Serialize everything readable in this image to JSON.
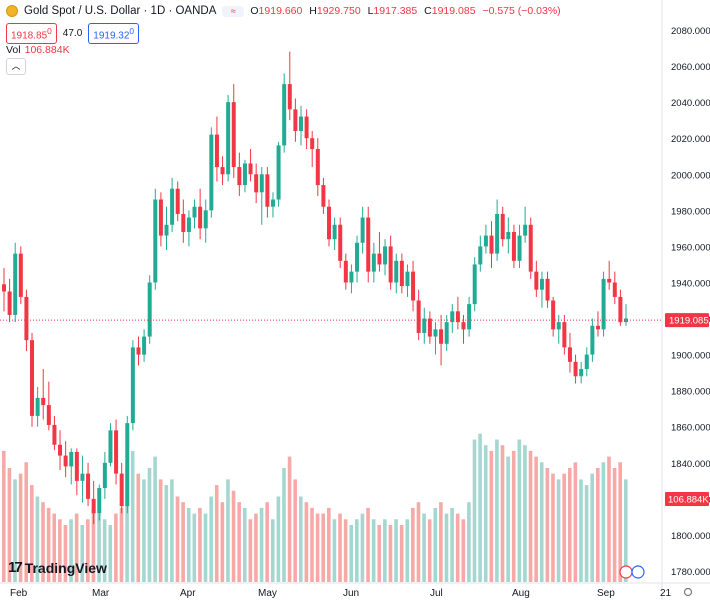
{
  "header": {
    "title": "Gold Spot / U.S. Dollar · 1D · OANDA",
    "ohlc": [
      {
        "k": "O",
        "v": "1919.660"
      },
      {
        "k": "H",
        "v": "1929.750"
      },
      {
        "k": "L",
        "v": "1917.385"
      },
      {
        "k": "C",
        "v": "1919.085"
      },
      {
        "k": "",
        "v": "−0.575 (−0.03%)"
      }
    ],
    "bid": "1918.85",
    "bid_sup": "0",
    "spread": "47.0",
    "ask": "1919.32",
    "ask_sup": "0",
    "vol_label": "Vol",
    "vol_value": "106.884K",
    "brand": "TradingView"
  },
  "colors": {
    "up": "#22ab94",
    "down": "#f23645",
    "vol_up": "#a5d6d0",
    "vol_down": "#f7a9a7"
  },
  "chart_data": {
    "type": "candlestick",
    "symbol": "Gold Spot / U.S. Dollar",
    "interval": "1D",
    "exchange": "OANDA",
    "last_price": "1919.085",
    "volume_last": "106.884K",
    "y_ticks": [
      "2080.000",
      "2060.000",
      "2040.000",
      "2020.000",
      "2000.000",
      "1980.000",
      "1960.000",
      "1940.000",
      "1920.000",
      "1900.000",
      "1880.000",
      "1860.000",
      "1840.000",
      "1820.000",
      "1800.000",
      "1780.000"
    ],
    "ylim": [
      1780,
      2080
    ],
    "x_ticks": [
      "Feb",
      "Mar",
      "Apr",
      "May",
      "Jun",
      "Jul",
      "Aug",
      "Sep",
      "21"
    ],
    "candles": [
      [
        1939,
        1948,
        1924,
        1935,
        46
      ],
      [
        1935,
        1942,
        1918,
        1922,
        40
      ],
      [
        1922,
        1962,
        1918,
        1956,
        36
      ],
      [
        1956,
        1960,
        1928,
        1932,
        38
      ],
      [
        1932,
        1936,
        1902,
        1908,
        42
      ],
      [
        1908,
        1912,
        1860,
        1866,
        34
      ],
      [
        1866,
        1882,
        1860,
        1876,
        30
      ],
      [
        1876,
        1892,
        1864,
        1872,
        28
      ],
      [
        1872,
        1885,
        1858,
        1861,
        26
      ],
      [
        1861,
        1866,
        1847,
        1850,
        24
      ],
      [
        1850,
        1858,
        1836,
        1844,
        22
      ],
      [
        1844,
        1852,
        1832,
        1838,
        20
      ],
      [
        1838,
        1848,
        1828,
        1846,
        22
      ],
      [
        1846,
        1848,
        1822,
        1830,
        24
      ],
      [
        1830,
        1844,
        1818,
        1834,
        20
      ],
      [
        1834,
        1840,
        1816,
        1820,
        22
      ],
      [
        1820,
        1830,
        1806,
        1812,
        26
      ],
      [
        1812,
        1828,
        1808,
        1826,
        24
      ],
      [
        1826,
        1846,
        1820,
        1840,
        22
      ],
      [
        1840,
        1862,
        1838,
        1858,
        20
      ],
      [
        1858,
        1864,
        1828,
        1834,
        24
      ],
      [
        1834,
        1840,
        1812,
        1816,
        26
      ],
      [
        1816,
        1866,
        1812,
        1862,
        40
      ],
      [
        1862,
        1908,
        1858,
        1904,
        46
      ],
      [
        1904,
        1910,
        1894,
        1900,
        38
      ],
      [
        1900,
        1914,
        1896,
        1910,
        36
      ],
      [
        1910,
        1944,
        1906,
        1940,
        40
      ],
      [
        1940,
        1992,
        1936,
        1986,
        44
      ],
      [
        1986,
        1990,
        1960,
        1966,
        36
      ],
      [
        1966,
        1982,
        1958,
        1972,
        34
      ],
      [
        1972,
        1998,
        1968,
        1992,
        36
      ],
      [
        1992,
        1996,
        1974,
        1978,
        30
      ],
      [
        1978,
        1986,
        1962,
        1968,
        28
      ],
      [
        1968,
        1980,
        1960,
        1976,
        26
      ],
      [
        1976,
        1986,
        1970,
        1982,
        24
      ],
      [
        1982,
        1992,
        1964,
        1970,
        26
      ],
      [
        1970,
        1986,
        1962,
        1980,
        24
      ],
      [
        1980,
        2026,
        1976,
        2022,
        30
      ],
      [
        2022,
        2032,
        1996,
        2004,
        34
      ],
      [
        2004,
        2010,
        1994,
        2000,
        28
      ],
      [
        2000,
        2044,
        1996,
        2040,
        36
      ],
      [
        2040,
        2050,
        1998,
        2004,
        32
      ],
      [
        2004,
        2012,
        1988,
        1994,
        28
      ],
      [
        1994,
        2008,
        1990,
        2006,
        26
      ],
      [
        2006,
        2014,
        1996,
        2000,
        22
      ],
      [
        2000,
        2006,
        1984,
        1990,
        24
      ],
      [
        1990,
        2004,
        1972,
        2000,
        26
      ],
      [
        2000,
        2004,
        1976,
        1982,
        28
      ],
      [
        1982,
        1990,
        1976,
        1986,
        22
      ],
      [
        1986,
        2018,
        1982,
        2016,
        30
      ],
      [
        2016,
        2056,
        2012,
        2050,
        40
      ],
      [
        2050,
        2068,
        2030,
        2036,
        44
      ],
      [
        2036,
        2042,
        2018,
        2024,
        36
      ],
      [
        2024,
        2038,
        2016,
        2032,
        30
      ],
      [
        2032,
        2036,
        2014,
        2020,
        28
      ],
      [
        2020,
        2024,
        2004,
        2014,
        26
      ],
      [
        2014,
        2020,
        1988,
        1994,
        24
      ],
      [
        1994,
        1998,
        1978,
        1982,
        24
      ],
      [
        1982,
        1986,
        1960,
        1964,
        26
      ],
      [
        1964,
        1976,
        1958,
        1972,
        22
      ],
      [
        1972,
        1976,
        1948,
        1952,
        24
      ],
      [
        1952,
        1956,
        1936,
        1940,
        22
      ],
      [
        1940,
        1950,
        1934,
        1946,
        20
      ],
      [
        1946,
        1966,
        1940,
        1962,
        22
      ],
      [
        1962,
        1982,
        1956,
        1976,
        24
      ],
      [
        1976,
        1982,
        1940,
        1946,
        26
      ],
      [
        1946,
        1962,
        1940,
        1956,
        22
      ],
      [
        1956,
        1968,
        1946,
        1950,
        20
      ],
      [
        1950,
        1964,
        1944,
        1960,
        22
      ],
      [
        1960,
        1966,
        1936,
        1940,
        20
      ],
      [
        1940,
        1956,
        1934,
        1952,
        22
      ],
      [
        1952,
        1956,
        1934,
        1938,
        20
      ],
      [
        1938,
        1950,
        1932,
        1946,
        22
      ],
      [
        1946,
        1952,
        1924,
        1930,
        26
      ],
      [
        1930,
        1936,
        1908,
        1912,
        28
      ],
      [
        1912,
        1926,
        1906,
        1920,
        24
      ],
      [
        1920,
        1924,
        1906,
        1910,
        22
      ],
      [
        1910,
        1918,
        1900,
        1914,
        26
      ],
      [
        1914,
        1922,
        1894,
        1906,
        28
      ],
      [
        1906,
        1922,
        1902,
        1918,
        24
      ],
      [
        1918,
        1928,
        1912,
        1924,
        26
      ],
      [
        1924,
        1932,
        1914,
        1918,
        24
      ],
      [
        1918,
        1922,
        1906,
        1914,
        22
      ],
      [
        1914,
        1932,
        1910,
        1928,
        28
      ],
      [
        1928,
        1954,
        1924,
        1950,
        50
      ],
      [
        1950,
        1966,
        1946,
        1960,
        52
      ],
      [
        1960,
        1972,
        1956,
        1966,
        48
      ],
      [
        1966,
        1974,
        1948,
        1956,
        46
      ],
      [
        1956,
        1986,
        1952,
        1978,
        50
      ],
      [
        1978,
        1982,
        1960,
        1964,
        48
      ],
      [
        1964,
        1976,
        1956,
        1968,
        44
      ],
      [
        1968,
        1972,
        1948,
        1952,
        46
      ],
      [
        1952,
        1972,
        1948,
        1966,
        50
      ],
      [
        1966,
        1982,
        1962,
        1972,
        48
      ],
      [
        1972,
        1976,
        1942,
        1946,
        46
      ],
      [
        1946,
        1952,
        1932,
        1936,
        44
      ],
      [
        1936,
        1946,
        1926,
        1942,
        42
      ],
      [
        1942,
        1946,
        1926,
        1930,
        40
      ],
      [
        1930,
        1932,
        1910,
        1914,
        38
      ],
      [
        1914,
        1922,
        1906,
        1918,
        36
      ],
      [
        1918,
        1922,
        1900,
        1904,
        38
      ],
      [
        1904,
        1912,
        1890,
        1896,
        40
      ],
      [
        1896,
        1900,
        1884,
        1888,
        42
      ],
      [
        1888,
        1896,
        1884,
        1892,
        36
      ],
      [
        1892,
        1904,
        1888,
        1900,
        34
      ],
      [
        1900,
        1920,
        1896,
        1916,
        38
      ],
      [
        1916,
        1924,
        1910,
        1914,
        40
      ],
      [
        1914,
        1946,
        1910,
        1942,
        42
      ],
      [
        1942,
        1952,
        1936,
        1940,
        44
      ],
      [
        1940,
        1946,
        1928,
        1932,
        40
      ],
      [
        1932,
        1936,
        1916,
        1918,
        42
      ],
      [
        1918,
        1928,
        1916,
        1920,
        36
      ]
    ]
  }
}
